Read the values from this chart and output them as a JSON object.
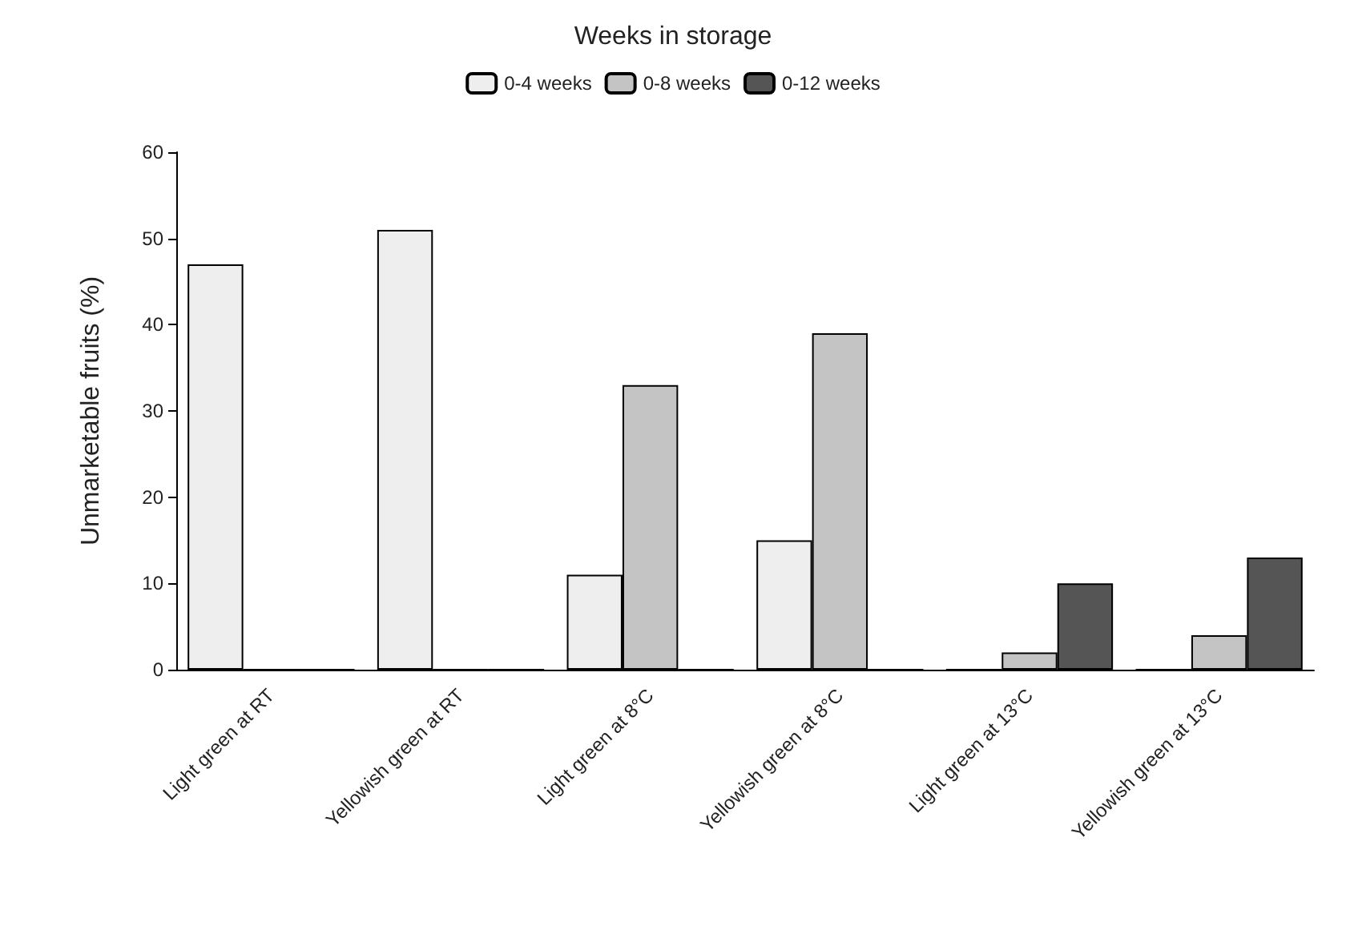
{
  "chart_data": {
    "type": "bar",
    "legend_title": "Weeks in storage",
    "ylabel": "Unmarketable fruits (%)",
    "categories": [
      "Light green at RT",
      "Yellowish green at RT",
      "Light green at 8°C",
      "Yellowish green at 8°C",
      "Light green at 13°C",
      "Yellowish green at 13°C"
    ],
    "series": [
      {
        "name": "0-4 weeks",
        "color": "#eeeeee",
        "values": [
          47,
          51,
          11,
          15,
          0,
          0
        ]
      },
      {
        "name": "0-8 weeks",
        "color": "#c4c4c4",
        "values": [
          0,
          0,
          33,
          39,
          2,
          4
        ]
      },
      {
        "name": "0-12 weeks",
        "color": "#555555",
        "values": [
          0,
          0,
          0,
          0,
          10,
          13
        ]
      }
    ],
    "ylim": [
      0,
      60
    ],
    "yticks": [
      0,
      10,
      20,
      30,
      40,
      50,
      60
    ],
    "grid": false,
    "legend": "top"
  }
}
